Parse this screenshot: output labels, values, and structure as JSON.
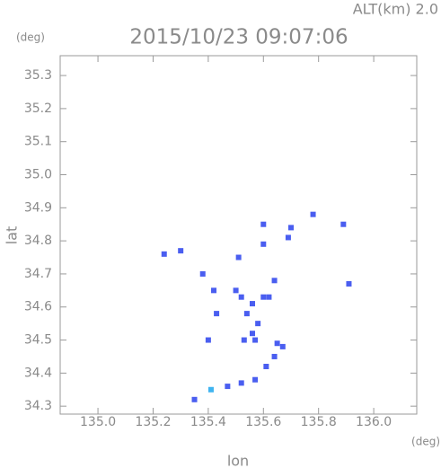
{
  "chart_data": {
    "type": "scatter",
    "title": "2015/10/23 09:07:06",
    "altitude": "ALT(km) 2.0",
    "y_unit": "(deg)",
    "x_unit": "(deg)",
    "xlabel": "lon",
    "ylabel": "lat",
    "x": [
      135.24,
      135.3,
      135.38,
      135.42,
      135.43,
      135.4,
      135.51,
      135.5,
      135.52,
      135.54,
      135.56,
      135.53,
      135.58,
      135.56,
      135.6,
      135.62,
      135.64,
      135.6,
      135.6,
      135.7,
      135.69,
      135.78,
      135.89,
      135.91,
      135.67,
      135.64,
      135.61,
      135.57,
      135.52,
      135.47,
      135.41,
      135.35,
      135.57,
      135.65
    ],
    "values": [
      34.76,
      34.77,
      34.7,
      34.65,
      34.58,
      34.5,
      34.75,
      34.65,
      34.63,
      34.58,
      34.52,
      34.5,
      34.55,
      34.61,
      34.63,
      34.63,
      34.68,
      34.79,
      34.85,
      34.84,
      34.81,
      34.88,
      34.85,
      34.67,
      34.48,
      34.45,
      34.42,
      34.38,
      34.37,
      34.36,
      34.35,
      34.32,
      34.5,
      34.49
    ],
    "colors": [
      "#4a5ef0",
      "#4a5ef0",
      "#4a5ef0",
      "#4a5ef0",
      "#4a5ef0",
      "#4a5ef0",
      "#4a5ef0",
      "#4a5ef0",
      "#4a5ef0",
      "#4a5ef0",
      "#4a5ef0",
      "#4a5ef0",
      "#4a5ef0",
      "#4a5ef0",
      "#4a5ef0",
      "#4a5ef0",
      "#4a5ef0",
      "#4a5ef0",
      "#4a5ef0",
      "#4a5ef0",
      "#4a5ef0",
      "#4a5ef0",
      "#4a5ef0",
      "#4a5ef0",
      "#4a5ef0",
      "#4a5ef0",
      "#4a5ef0",
      "#4a5ef0",
      "#4a5ef0",
      "#4a5ef0",
      "#3fb4f0",
      "#4a5ef0",
      "#4a5ef0",
      "#4a5ef0"
    ],
    "xlim": [
      134.863,
      136.156
    ],
    "ylim": [
      34.276,
      35.36
    ],
    "xticks": [
      {
        "value": 135,
        "label": "135.0"
      },
      135.2,
      135.4,
      135.6,
      135.8,
      {
        "value": 136,
        "label": "136.0"
      }
    ],
    "yticks": [
      34.3,
      34.4,
      34.5,
      34.6,
      34.7,
      34.8,
      34.9,
      {
        "value": 35,
        "label": "35.0"
      },
      35.1,
      35.2,
      35.3
    ],
    "grid": false
  }
}
